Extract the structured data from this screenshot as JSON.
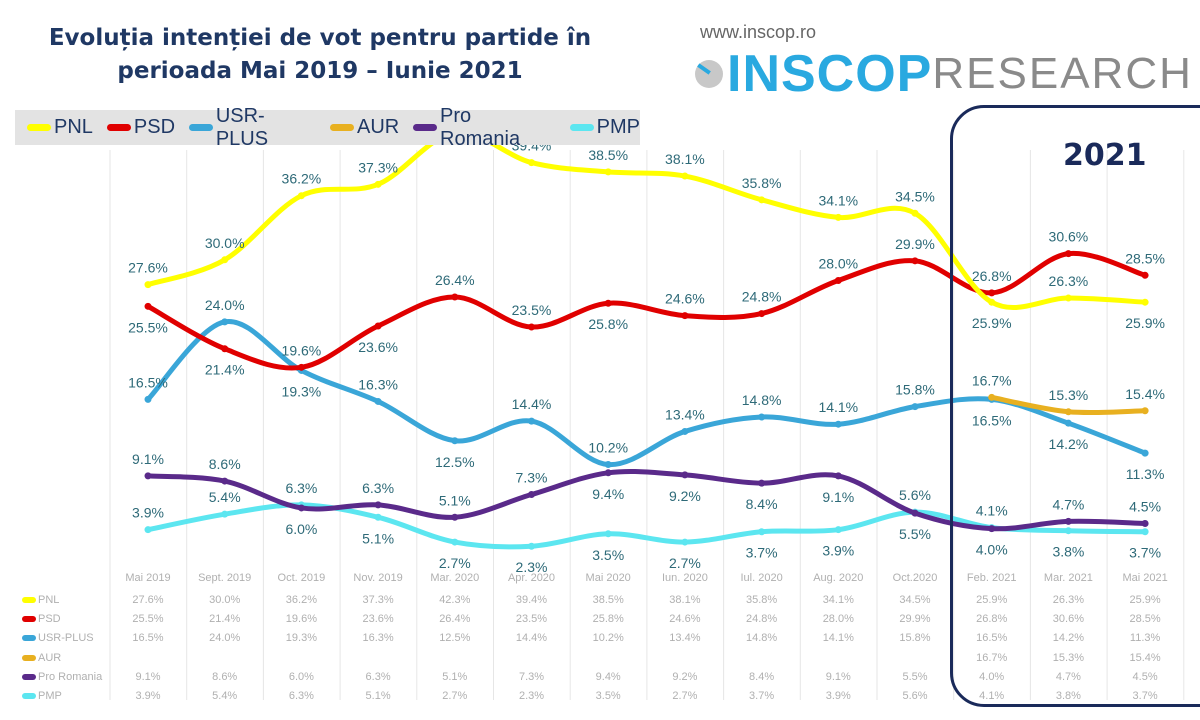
{
  "header": {
    "title_line1": "Evoluția intenției de vot pentru partide în",
    "title_line2": "perioada Mai 2019 – Iunie 2021",
    "website": "www.inscop.ro",
    "logo_bold": "INSCOP",
    "logo_light": "RESEARCH"
  },
  "annotation": "2021",
  "chart_data": {
    "type": "line",
    "title": "Evoluția intenției de vot pentru partide în perioada Mai 2019 – Iunie 2021",
    "categories": [
      "Mai 2019",
      "Sept. 2019",
      "Oct. 2019",
      "Nov. 2019",
      "Mar. 2020",
      "Apr. 2020",
      "Mai 2020",
      "Iun. 2020",
      "Iul. 2020",
      "Aug. 2020",
      "Oct.2020",
      "Feb. 2021",
      "Mar. 2021",
      "Mai 2021"
    ],
    "unit": "%",
    "legend_position": "top-left",
    "grid": "vertical",
    "data_table": true,
    "series": [
      {
        "name": "PNL",
        "color": "#ffff00",
        "values": [
          27.6,
          30.0,
          36.2,
          37.3,
          42.3,
          39.4,
          38.5,
          38.1,
          35.8,
          34.1,
          34.5,
          25.9,
          26.3,
          25.9
        ]
      },
      {
        "name": "PSD",
        "color": "#e00000",
        "values": [
          25.5,
          21.4,
          19.6,
          23.6,
          26.4,
          23.5,
          25.8,
          24.6,
          24.8,
          28.0,
          29.9,
          26.8,
          30.6,
          28.5
        ]
      },
      {
        "name": "USR-PLUS",
        "color": "#3aa6d8",
        "values": [
          16.5,
          24.0,
          19.3,
          16.3,
          12.5,
          14.4,
          10.2,
          13.4,
          14.8,
          14.1,
          15.8,
          16.5,
          14.2,
          11.3
        ]
      },
      {
        "name": "AUR",
        "color": "#e8b020",
        "values": [
          null,
          null,
          null,
          null,
          null,
          null,
          null,
          null,
          null,
          null,
          null,
          16.7,
          15.3,
          15.4
        ]
      },
      {
        "name": "Pro Romania",
        "color": "#5a2a8a",
        "values": [
          9.1,
          8.6,
          6.0,
          6.3,
          5.1,
          7.3,
          9.4,
          9.2,
          8.4,
          9.1,
          5.5,
          4.0,
          4.7,
          4.5
        ]
      },
      {
        "name": "PMP",
        "color": "#5ce6f0",
        "values": [
          3.9,
          5.4,
          6.3,
          5.1,
          2.7,
          2.3,
          3.5,
          2.7,
          3.7,
          3.9,
          5.6,
          4.1,
          3.8,
          3.7
        ]
      }
    ]
  }
}
